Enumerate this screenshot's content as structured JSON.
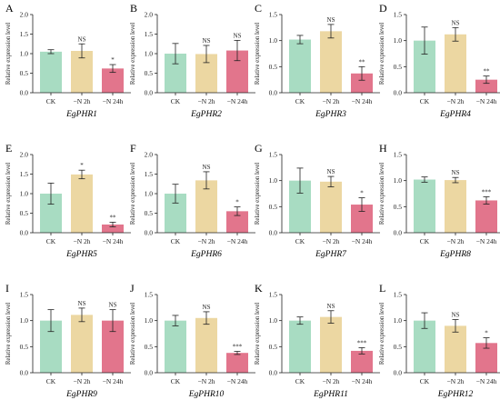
{
  "colors": {
    "CK": "#a8dcc2",
    "-N 2h": "#ecd7a2",
    "-N 24h": "#e2758c",
    "errorbar": "#222222"
  },
  "chart_data": [
    {
      "type": "bar",
      "panel": "A",
      "gene": "EgPHR1",
      "categories": [
        "CK",
        "−N 2h",
        "−N 24h"
      ],
      "values": [
        1.05,
        1.07,
        0.62
      ],
      "errors": [
        0.05,
        0.18,
        0.1
      ],
      "significance": [
        "",
        "NS",
        "*"
      ],
      "ylabel": "Relative expression level",
      "ylim": [
        0,
        2.0
      ],
      "yticks": [
        "0.0",
        "0.5",
        "1.0",
        "1.5",
        "2.0"
      ]
    },
    {
      "type": "bar",
      "panel": "B",
      "gene": "EgPHR2",
      "categories": [
        "CK",
        "−N 2h",
        "−N 24h"
      ],
      "values": [
        1.0,
        0.99,
        1.08
      ],
      "errors": [
        0.26,
        0.22,
        0.26
      ],
      "significance": [
        "",
        "NS",
        "NS"
      ],
      "ylabel": "Relative expression level",
      "ylim": [
        0,
        2.0
      ],
      "yticks": [
        "0.0",
        "0.5",
        "1.0",
        "1.5",
        "2.0"
      ]
    },
    {
      "type": "bar",
      "panel": "C",
      "gene": "EgPHR3",
      "categories": [
        "CK",
        "−N 2h",
        "−N 24h"
      ],
      "values": [
        1.02,
        1.18,
        0.37
      ],
      "errors": [
        0.08,
        0.13,
        0.13
      ],
      "significance": [
        "",
        "NS",
        "**"
      ],
      "ylabel": "Relative expression level",
      "ylim": [
        0,
        1.5
      ],
      "yticks": [
        "0.0",
        "0.5",
        "1.0",
        "1.5"
      ]
    },
    {
      "type": "bar",
      "panel": "D",
      "gene": "EgPHR4",
      "categories": [
        "CK",
        "−N 2h",
        "−N 24h"
      ],
      "values": [
        1.0,
        1.12,
        0.25
      ],
      "errors": [
        0.26,
        0.13,
        0.07
      ],
      "significance": [
        "",
        "NS",
        "**"
      ],
      "ylabel": "Relative expression level",
      "ylim": [
        0,
        1.5
      ],
      "yticks": [
        "0.0",
        "0.5",
        "1.0",
        "1.5"
      ]
    },
    {
      "type": "bar",
      "panel": "E",
      "gene": "EgPHR5",
      "categories": [
        "CK",
        "−N 2h",
        "−N 24h"
      ],
      "values": [
        1.0,
        1.49,
        0.21
      ],
      "errors": [
        0.27,
        0.11,
        0.06
      ],
      "significance": [
        "",
        "*",
        "**"
      ],
      "ylabel": "Relative expression level",
      "ylim": [
        0,
        2.0
      ],
      "yticks": [
        "0.0",
        "0.5",
        "1.0",
        "1.5",
        "2.0"
      ]
    },
    {
      "type": "bar",
      "panel": "F",
      "gene": "EgPHR6",
      "categories": [
        "CK",
        "−N 2h",
        "−N 24h"
      ],
      "values": [
        1.0,
        1.34,
        0.55
      ],
      "errors": [
        0.24,
        0.22,
        0.11
      ],
      "significance": [
        "",
        "NS",
        "*"
      ],
      "ylabel": "Relative expression level",
      "ylim": [
        0,
        2.0
      ],
      "yticks": [
        "0.0",
        "0.5",
        "1.0",
        "1.5",
        "2.0"
      ]
    },
    {
      "type": "bar",
      "panel": "G",
      "gene": "EgPHR7",
      "categories": [
        "CK",
        "−N 2h",
        "−N 24h"
      ],
      "values": [
        1.0,
        0.98,
        0.54
      ],
      "errors": [
        0.24,
        0.1,
        0.13
      ],
      "significance": [
        "",
        "NS",
        "*"
      ],
      "ylabel": "Relative expression level",
      "ylim": [
        0,
        1.5
      ],
      "yticks": [
        "0.0",
        "0.5",
        "1.0",
        "1.5"
      ]
    },
    {
      "type": "bar",
      "panel": "H",
      "gene": "EgPHR8",
      "categories": [
        "CK",
        "−N 2h",
        "−N 24h"
      ],
      "values": [
        1.02,
        1.01,
        0.62
      ],
      "errors": [
        0.05,
        0.05,
        0.07
      ],
      "significance": [
        "",
        "NS",
        "***"
      ],
      "ylabel": "Relative expression level",
      "ylim": [
        0,
        1.5
      ],
      "yticks": [
        "0.0",
        "0.5",
        "1.0",
        "1.5"
      ]
    },
    {
      "type": "bar",
      "panel": "I",
      "gene": "EgPHR9",
      "categories": [
        "CK",
        "−N 2h",
        "−N 24h"
      ],
      "values": [
        1.0,
        1.11,
        1.0
      ],
      "errors": [
        0.21,
        0.13,
        0.21
      ],
      "significance": [
        "",
        "NS",
        "NS"
      ],
      "ylabel": "Relative expression level",
      "ylim": [
        0,
        1.5
      ],
      "yticks": [
        "0.0",
        "0.5",
        "1.0",
        "1.5"
      ]
    },
    {
      "type": "bar",
      "panel": "J",
      "gene": "EgPHR10",
      "categories": [
        "CK",
        "−N 2h",
        "−N 24h"
      ],
      "values": [
        1.0,
        1.05,
        0.38
      ],
      "errors": [
        0.1,
        0.12,
        0.03
      ],
      "significance": [
        "",
        "NS",
        "***"
      ],
      "ylabel": "Relative expression level",
      "ylim": [
        0,
        1.5
      ],
      "yticks": [
        "0.0",
        "0.5",
        "1.0",
        "1.5"
      ]
    },
    {
      "type": "bar",
      "panel": "K",
      "gene": "EgPHR11",
      "categories": [
        "CK",
        "−N 2h",
        "−N 24h"
      ],
      "values": [
        1.0,
        1.07,
        0.42
      ],
      "errors": [
        0.07,
        0.12,
        0.06
      ],
      "significance": [
        "",
        "NS",
        "***"
      ],
      "ylabel": "Relative expression level",
      "ylim": [
        0,
        1.5
      ],
      "yticks": [
        "0.0",
        "0.5",
        "1.0",
        "1.5"
      ]
    },
    {
      "type": "bar",
      "panel": "L",
      "gene": "EgPHR12",
      "categories": [
        "CK",
        "−N 2h",
        "−N 24h"
      ],
      "values": [
        1.0,
        0.9,
        0.57
      ],
      "errors": [
        0.15,
        0.12,
        0.1
      ],
      "significance": [
        "",
        "NS",
        "*"
      ],
      "ylabel": "Relative expression level",
      "ylim": [
        0,
        1.5
      ],
      "yticks": [
        "0.0",
        "0.5",
        "1.0",
        "1.5"
      ]
    }
  ]
}
